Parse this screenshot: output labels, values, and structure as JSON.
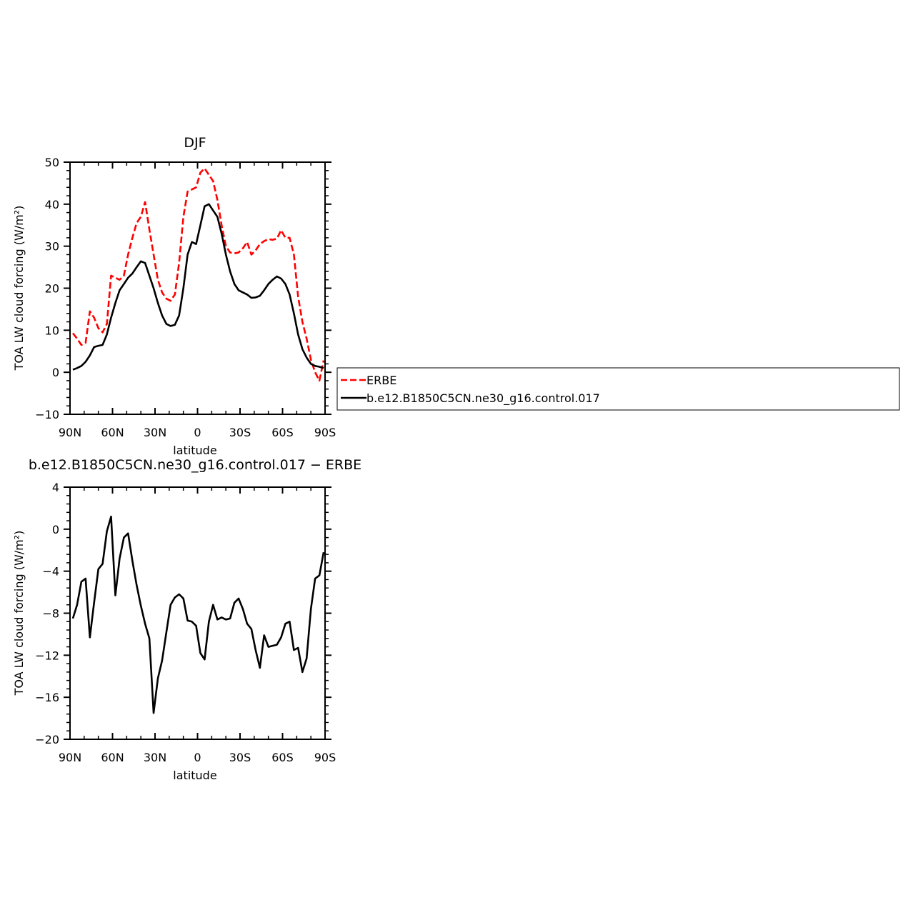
{
  "chart_data": [
    {
      "type": "line",
      "title": "DJF",
      "xlabel": "latitude",
      "ylabel": "TOA LW cloud forcing (W/m²)",
      "xlim": [
        90,
        -90
      ],
      "ylim": [
        -10,
        50
      ],
      "xticks": [
        90,
        60,
        30,
        0,
        -30,
        -60,
        -90
      ],
      "xtick_labels": [
        "90N",
        "60N",
        "30N",
        "0",
        "30S",
        "60S",
        "90S"
      ],
      "yticks": [
        -10,
        0,
        10,
        20,
        30,
        40,
        50
      ],
      "ytick_labels": [
        "−10",
        "0",
        "10",
        "20",
        "30",
        "40",
        "50"
      ],
      "grid": false,
      "legend_position": "right",
      "series": [
        {
          "name": "ERBE",
          "color": "#ff0000",
          "dash": "dashed",
          "x": [
            88,
            85,
            82,
            79,
            76,
            73,
            70,
            67,
            64,
            61,
            58,
            55,
            52,
            49,
            46,
            43,
            40,
            37,
            34,
            31,
            28,
            25,
            22,
            19,
            16,
            13,
            10,
            7,
            4,
            1,
            -2,
            -5,
            -8,
            -11,
            -14,
            -17,
            -20,
            -23,
            -26,
            -29,
            -32,
            -35,
            -38,
            -41,
            -44,
            -47,
            -50,
            -53,
            -56,
            -59,
            -62,
            -65,
            -68,
            -71,
            -74,
            -77,
            -80,
            -83,
            -86,
            -89
          ],
          "y": [
            9.3,
            8.0,
            6.5,
            7.0,
            14.5,
            13.0,
            10.5,
            9.5,
            11.5,
            23.0,
            22.5,
            22.0,
            23.0,
            28.0,
            32.0,
            35.5,
            37.0,
            40.5,
            34.0,
            28.0,
            22.0,
            19.0,
            17.5,
            17.0,
            18.5,
            26.0,
            37.0,
            43.0,
            43.5,
            44.0,
            47.5,
            48.5,
            47.0,
            45.5,
            41.0,
            35.0,
            30.0,
            28.5,
            28.3,
            28.5,
            29.5,
            31.0,
            28.0,
            29.0,
            30.5,
            31.2,
            31.7,
            31.5,
            31.8,
            33.8,
            32.0,
            32.0,
            28.0,
            18.0,
            12.0,
            8.0,
            3.0,
            0.0,
            -2.0,
            2.8
          ]
        },
        {
          "name": "b.e12.B1850C5CN.ne30_g16.control.017",
          "color": "#000000",
          "dash": "solid",
          "x": [
            88,
            85,
            82,
            79,
            76,
            73,
            70,
            67,
            64,
            61,
            58,
            55,
            52,
            49,
            46,
            43,
            40,
            37,
            34,
            31,
            28,
            25,
            22,
            19,
            16,
            13,
            10,
            7,
            4,
            1,
            -2,
            -5,
            -8,
            -11,
            -14,
            -17,
            -20,
            -23,
            -26,
            -29,
            -32,
            -35,
            -38,
            -41,
            -44,
            -47,
            -50,
            -53,
            -56,
            -59,
            -62,
            -65,
            -68,
            -71,
            -74,
            -77,
            -80,
            -83,
            -86,
            -89
          ],
          "y": [
            0.6,
            1.0,
            1.5,
            2.5,
            4.0,
            6.0,
            6.3,
            6.5,
            9.0,
            13.0,
            16.5,
            19.5,
            21.0,
            22.5,
            23.5,
            25.0,
            26.4,
            26.0,
            23.0,
            20.0,
            16.5,
            13.5,
            11.5,
            11.0,
            11.3,
            13.5,
            20.0,
            28.0,
            31.0,
            30.5,
            35.0,
            39.5,
            40.0,
            38.5,
            37.0,
            33.0,
            28.0,
            24.0,
            21.0,
            19.5,
            19.0,
            18.5,
            17.7,
            17.8,
            18.2,
            19.5,
            21.0,
            22.0,
            22.8,
            22.3,
            21.0,
            18.5,
            14.0,
            9.0,
            5.5,
            3.5,
            2.0,
            1.5,
            1.3,
            1.0
          ]
        }
      ]
    },
    {
      "type": "line",
      "title": "b.e12.B1850C5CN.ne30_g16.control.017 − ERBE",
      "xlabel": "latitude",
      "ylabel": "TOA LW cloud forcing (W/m²)",
      "xlim": [
        90,
        -90
      ],
      "ylim": [
        -20,
        4
      ],
      "xticks": [
        90,
        60,
        30,
        0,
        -30,
        -60,
        -90
      ],
      "xtick_labels": [
        "90N",
        "60N",
        "30N",
        "0",
        "30S",
        "60S",
        "90S"
      ],
      "yticks": [
        -20,
        -16,
        -12,
        -8,
        -4,
        0,
        4
      ],
      "ytick_labels": [
        "−20",
        "−16",
        "−12",
        "−8",
        "−4",
        "0",
        "4"
      ],
      "grid": false,
      "series": [
        {
          "color": "#000000",
          "dash": "solid",
          "x": [
            88,
            85,
            82,
            79,
            76,
            73,
            70,
            67,
            64,
            61,
            58,
            55,
            52,
            49,
            46,
            43,
            40,
            37,
            34,
            31,
            28,
            25,
            22,
            19,
            16,
            13,
            10,
            7,
            4,
            1,
            -2,
            -5,
            -8,
            -11,
            -14,
            -17,
            -20,
            -23,
            -26,
            -29,
            -32,
            -35,
            -38,
            -41,
            -44,
            -47,
            -50,
            -53,
            -56,
            -59,
            -62,
            -65,
            -68,
            -71,
            -74,
            -77,
            -80,
            -83,
            -86,
            -89
          ],
          "y": [
            -8.5,
            -7.2,
            -5.0,
            -4.7,
            -10.3,
            -7.0,
            -3.8,
            -3.3,
            -0.2,
            1.2,
            -6.3,
            -2.8,
            -0.8,
            -0.4,
            -3.0,
            -5.3,
            -7.3,
            -9.0,
            -10.4,
            -17.5,
            -14.2,
            -12.5,
            -9.8,
            -7.2,
            -6.5,
            -6.2,
            -6.6,
            -8.7,
            -8.8,
            -9.2,
            -11.8,
            -12.4,
            -8.8,
            -7.2,
            -8.6,
            -8.4,
            -8.6,
            -8.5,
            -7.0,
            -6.6,
            -7.6,
            -9.0,
            -9.5,
            -11.5,
            -13.2,
            -10.1,
            -11.2,
            -11.1,
            -11.0,
            -10.3,
            -9.0,
            -8.8,
            -11.5,
            -11.3,
            -13.6,
            -12.3,
            -7.6,
            -4.7,
            -4.4,
            -2.2
          ]
        }
      ]
    }
  ]
}
